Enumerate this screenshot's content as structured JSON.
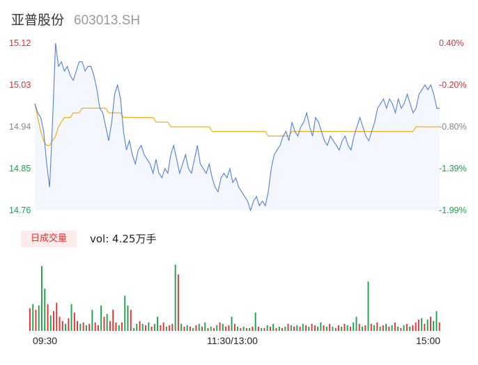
{
  "header": {
    "stock_name": "亚普股份",
    "stock_code": "603013.SH"
  },
  "price_axis": [
    "15.12",
    "15.03",
    "14.94",
    "14.85",
    "14.76"
  ],
  "pct_axis": [
    "0.40%",
    "-0.20%",
    "-0.80%",
    "-1.39%",
    "-1.99%"
  ],
  "volume_panel": {
    "tab_label": "日成交量",
    "volume_text": "vol: 4.25万手"
  },
  "time_axis": [
    "09:30",
    "11:30/13:00",
    "15:00"
  ],
  "colors": {
    "price_line": "#4f7ee3",
    "avg_line": "#f2b229",
    "up": "#e62e2e",
    "down": "#1aa34a",
    "area": "#f4f7fd"
  },
  "chart_data": {
    "type": "line",
    "ylim": [
      14.76,
      15.12
    ],
    "pct_range": [
      -1.99,
      0.4
    ],
    "time_range": [
      "09:30",
      "15:00"
    ],
    "series": [
      {
        "values": [
          14.99,
          14.97,
          14.96,
          14.93,
          14.86,
          14.81,
          14.95,
          15.12,
          15.07,
          15.08,
          15.06,
          15.07,
          15.05,
          15.04,
          15.06,
          15.08,
          15.08,
          15.06,
          15.07,
          15.07,
          15.05,
          15.02,
          14.98,
          14.97,
          14.94,
          14.91,
          14.95,
          15.01,
          15.03,
          15.0,
          14.93,
          14.89,
          14.91,
          14.88,
          14.86,
          14.89,
          14.9,
          14.88,
          14.87,
          14.86,
          14.84,
          14.87,
          14.84,
          14.83,
          14.85,
          14.84,
          14.88,
          14.9,
          14.87,
          14.84,
          14.86,
          14.88,
          14.85,
          14.84,
          14.87,
          14.9,
          14.86,
          14.85,
          14.84,
          14.86,
          14.83,
          14.81,
          14.8,
          14.83,
          14.84,
          14.83,
          14.85,
          14.82,
          14.83,
          14.81,
          14.8,
          14.79,
          14.78,
          14.76,
          14.78,
          14.79,
          14.77,
          14.78,
          14.77,
          14.8,
          14.85,
          14.88,
          14.89,
          14.9,
          14.92,
          14.93,
          14.91,
          14.95,
          14.93,
          14.92,
          14.94,
          14.95,
          14.97,
          14.94,
          14.92,
          14.96,
          14.95,
          14.93,
          14.91,
          14.9,
          14.92,
          14.91,
          14.9,
          14.89,
          14.91,
          14.92,
          14.9,
          14.89,
          14.92,
          14.94,
          14.96,
          14.94,
          14.92,
          14.91,
          14.93,
          14.95,
          14.98,
          14.99,
          15.0,
          14.98,
          15.0,
          14.99,
          14.97,
          15.0,
          14.98,
          14.99,
          15.01,
          14.99,
          14.97,
          14.98,
          15.01,
          15.02,
          15.03,
          15.02,
          15.03,
          15.01,
          14.98,
          14.98
        ]
      },
      {
        "values": [
          14.99,
          14.96,
          14.93,
          14.91,
          14.9,
          14.9,
          14.91,
          14.92,
          14.94,
          14.95,
          14.96,
          14.96,
          14.96,
          14.97,
          14.97,
          14.97,
          14.98,
          14.98,
          14.98,
          14.98,
          14.98,
          14.98,
          14.98,
          14.98,
          14.98,
          14.97,
          14.97,
          14.97,
          14.97,
          14.97,
          14.96,
          14.96,
          14.96,
          14.96,
          14.96,
          14.96,
          14.96,
          14.96,
          14.96,
          14.96,
          14.96,
          14.95,
          14.95,
          14.95,
          14.95,
          14.95,
          14.94,
          14.94,
          14.94,
          14.94,
          14.94,
          14.94,
          14.94,
          14.94,
          14.94,
          14.94,
          14.94,
          14.94,
          14.94,
          14.94,
          14.93,
          14.93,
          14.93,
          14.93,
          14.93,
          14.93,
          14.93,
          14.93,
          14.93,
          14.93,
          14.93,
          14.93,
          14.93,
          14.93,
          14.93,
          14.93,
          14.93,
          14.93,
          14.93,
          14.92,
          14.92,
          14.92,
          14.92,
          14.92,
          14.92,
          14.92,
          14.92,
          14.93,
          14.93,
          14.93,
          14.93,
          14.93,
          14.93,
          14.93,
          14.93,
          14.93,
          14.93,
          14.93,
          14.93,
          14.93,
          14.93,
          14.93,
          14.93,
          14.93,
          14.93,
          14.93,
          14.93,
          14.93,
          14.93,
          14.93,
          14.93,
          14.93,
          14.93,
          14.93,
          14.93,
          14.93,
          14.93,
          14.93,
          14.93,
          14.93,
          14.93,
          14.93,
          14.93,
          14.93,
          14.93,
          14.93,
          14.93,
          14.93,
          14.93,
          14.94,
          14.94,
          14.94,
          14.94,
          14.94,
          14.94,
          14.94,
          14.94,
          14.94
        ]
      }
    ],
    "volume": [
      {
        "v": 32,
        "d": 1
      },
      {
        "v": 38,
        "d": 0
      },
      {
        "v": 30,
        "d": 1
      },
      {
        "v": 36,
        "d": 0
      },
      {
        "v": 92,
        "d": 0
      },
      {
        "v": 60,
        "d": 0
      },
      {
        "v": 38,
        "d": 1
      },
      {
        "v": 22,
        "d": 0
      },
      {
        "v": 28,
        "d": 1
      },
      {
        "v": 40,
        "d": 1
      },
      {
        "v": 20,
        "d": 1
      },
      {
        "v": 14,
        "d": 1
      },
      {
        "v": 10,
        "d": 0
      },
      {
        "v": 18,
        "d": 1
      },
      {
        "v": 38,
        "d": 0
      },
      {
        "v": 26,
        "d": 1
      },
      {
        "v": 14,
        "d": 1
      },
      {
        "v": 10,
        "d": 0
      },
      {
        "v": 12,
        "d": 1
      },
      {
        "v": 8,
        "d": 0
      },
      {
        "v": 10,
        "d": 1
      },
      {
        "v": 30,
        "d": 0
      },
      {
        "v": 12,
        "d": 1
      },
      {
        "v": 8,
        "d": 1
      },
      {
        "v": 36,
        "d": 0
      },
      {
        "v": 20,
        "d": 1
      },
      {
        "v": 24,
        "d": 0
      },
      {
        "v": 14,
        "d": 1
      },
      {
        "v": 30,
        "d": 1
      },
      {
        "v": 12,
        "d": 1
      },
      {
        "v": 8,
        "d": 0
      },
      {
        "v": 12,
        "d": 1
      },
      {
        "v": 50,
        "d": 0
      },
      {
        "v": 36,
        "d": 0
      },
      {
        "v": 30,
        "d": 1
      },
      {
        "v": 4,
        "d": 0
      },
      {
        "v": 10,
        "d": 0
      },
      {
        "v": 14,
        "d": 1
      },
      {
        "v": 10,
        "d": 0
      },
      {
        "v": 8,
        "d": 1
      },
      {
        "v": 12,
        "d": 0
      },
      {
        "v": 6,
        "d": 1
      },
      {
        "v": 10,
        "d": 0
      },
      {
        "v": 20,
        "d": 0
      },
      {
        "v": 8,
        "d": 1
      },
      {
        "v": 12,
        "d": 1
      },
      {
        "v": 6,
        "d": 0
      },
      {
        "v": 8,
        "d": 1
      },
      {
        "v": 10,
        "d": 1
      },
      {
        "v": 94,
        "d": 0
      },
      {
        "v": 80,
        "d": 1
      },
      {
        "v": 10,
        "d": 0
      },
      {
        "v": 6,
        "d": 1
      },
      {
        "v": 8,
        "d": 0
      },
      {
        "v": 6,
        "d": 1
      },
      {
        "v": 4,
        "d": 0
      },
      {
        "v": 8,
        "d": 1
      },
      {
        "v": 10,
        "d": 0
      },
      {
        "v": 6,
        "d": 1
      },
      {
        "v": 12,
        "d": 0
      },
      {
        "v": 4,
        "d": 1
      },
      {
        "v": 6,
        "d": 0
      },
      {
        "v": 4,
        "d": 1
      },
      {
        "v": 8,
        "d": 0
      },
      {
        "v": 12,
        "d": 1
      },
      {
        "v": 10,
        "d": 0
      },
      {
        "v": 6,
        "d": 1
      },
      {
        "v": 8,
        "d": 1
      },
      {
        "v": 20,
        "d": 0
      },
      {
        "v": 10,
        "d": 1
      },
      {
        "v": 6,
        "d": 0
      },
      {
        "v": 4,
        "d": 1
      },
      {
        "v": 6,
        "d": 0
      },
      {
        "v": 4,
        "d": 1
      },
      {
        "v": 4,
        "d": 0
      },
      {
        "v": 6,
        "d": 1
      },
      {
        "v": 26,
        "d": 0
      },
      {
        "v": 6,
        "d": 1
      },
      {
        "v": 4,
        "d": 0
      },
      {
        "v": 4,
        "d": 1
      },
      {
        "v": 8,
        "d": 0
      },
      {
        "v": 6,
        "d": 1
      },
      {
        "v": 10,
        "d": 0
      },
      {
        "v": 4,
        "d": 1
      },
      {
        "v": 6,
        "d": 0
      },
      {
        "v": 4,
        "d": 1
      },
      {
        "v": 6,
        "d": 0
      },
      {
        "v": 10,
        "d": 1
      },
      {
        "v": 8,
        "d": 0
      },
      {
        "v": 6,
        "d": 1
      },
      {
        "v": 8,
        "d": 0
      },
      {
        "v": 6,
        "d": 1
      },
      {
        "v": 10,
        "d": 0
      },
      {
        "v": 8,
        "d": 1
      },
      {
        "v": 6,
        "d": 0
      },
      {
        "v": 10,
        "d": 1
      },
      {
        "v": 8,
        "d": 1
      },
      {
        "v": 6,
        "d": 0
      },
      {
        "v": 12,
        "d": 0
      },
      {
        "v": 8,
        "d": 1
      },
      {
        "v": 6,
        "d": 0
      },
      {
        "v": 10,
        "d": 1
      },
      {
        "v": 6,
        "d": 0
      },
      {
        "v": 4,
        "d": 1
      },
      {
        "v": 8,
        "d": 1
      },
      {
        "v": 6,
        "d": 0
      },
      {
        "v": 10,
        "d": 1
      },
      {
        "v": 8,
        "d": 0
      },
      {
        "v": 6,
        "d": 1
      },
      {
        "v": 12,
        "d": 0
      },
      {
        "v": 20,
        "d": 0
      },
      {
        "v": 10,
        "d": 1
      },
      {
        "v": 6,
        "d": 0
      },
      {
        "v": 8,
        "d": 1
      },
      {
        "v": 70,
        "d": 0
      },
      {
        "v": 10,
        "d": 1
      },
      {
        "v": 8,
        "d": 0
      },
      {
        "v": 12,
        "d": 1
      },
      {
        "v": 6,
        "d": 0
      },
      {
        "v": 8,
        "d": 1
      },
      {
        "v": 10,
        "d": 0
      },
      {
        "v": 6,
        "d": 1
      },
      {
        "v": 8,
        "d": 0
      },
      {
        "v": 12,
        "d": 1
      },
      {
        "v": 6,
        "d": 0
      },
      {
        "v": 4,
        "d": 1
      },
      {
        "v": 8,
        "d": 0
      },
      {
        "v": 10,
        "d": 1
      },
      {
        "v": 6,
        "d": 0
      },
      {
        "v": 8,
        "d": 1
      },
      {
        "v": 12,
        "d": 1
      },
      {
        "v": 16,
        "d": 1
      },
      {
        "v": 18,
        "d": 0
      },
      {
        "v": 10,
        "d": 1
      },
      {
        "v": 16,
        "d": 0
      },
      {
        "v": 20,
        "d": 1
      },
      {
        "v": 14,
        "d": 0
      },
      {
        "v": 28,
        "d": 0
      },
      {
        "v": 12,
        "d": 1
      }
    ]
  }
}
